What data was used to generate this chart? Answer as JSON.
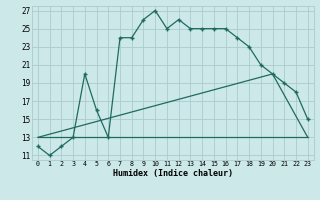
{
  "xlabel": "Humidex (Indice chaleur)",
  "bg_color": "#cce8e8",
  "grid_color": "#aacccc",
  "line_color": "#1e6b5e",
  "xlim": [
    -0.5,
    23.5
  ],
  "ylim": [
    10.5,
    27.5
  ],
  "yticks": [
    11,
    13,
    15,
    17,
    19,
    21,
    23,
    25,
    27
  ],
  "xticks": [
    0,
    1,
    2,
    3,
    4,
    5,
    6,
    7,
    8,
    9,
    10,
    11,
    12,
    13,
    14,
    15,
    16,
    17,
    18,
    19,
    20,
    21,
    22,
    23
  ],
  "curve1_x": [
    0,
    1,
    2,
    3,
    4,
    5,
    6,
    7,
    8,
    9,
    10,
    11,
    12,
    13,
    14,
    15,
    16,
    17,
    18,
    19,
    20,
    21,
    22,
    23
  ],
  "curve1_y": [
    12,
    11,
    12,
    13,
    20,
    16,
    13,
    24,
    24,
    26,
    27,
    25,
    26,
    25,
    25,
    25,
    25,
    24,
    23,
    21,
    20,
    19,
    18,
    15
  ],
  "curve2_x": [
    0,
    23
  ],
  "curve2_y": [
    13,
    13
  ],
  "curve3_x": [
    0,
    20,
    23
  ],
  "curve3_y": [
    13,
    20,
    13
  ],
  "figwidth": 3.2,
  "figheight": 2.0,
  "dpi": 100
}
